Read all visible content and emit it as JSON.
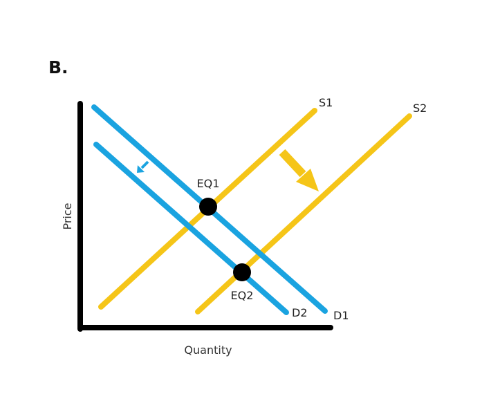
{
  "panel_label": "B.",
  "axes": {
    "x_label": "Quantity",
    "y_label": "Price"
  },
  "curves": [
    {
      "id": "S1",
      "label": "S1",
      "kind": "supply",
      "color": "#F5C518"
    },
    {
      "id": "S2",
      "label": "S2",
      "kind": "supply",
      "color": "#F5C518"
    },
    {
      "id": "D1",
      "label": "D1",
      "kind": "demand",
      "color": "#1AA3E0"
    },
    {
      "id": "D2",
      "label": "D2",
      "kind": "demand",
      "color": "#1AA3E0"
    }
  ],
  "equilibria": [
    {
      "label": "EQ1"
    },
    {
      "label": "EQ2"
    }
  ],
  "shift_arrows": [
    {
      "name": "demand-shift-arrow",
      "direction": "down-left",
      "color": "#1AA3E0"
    },
    {
      "name": "supply-shift-arrow",
      "direction": "down-right",
      "color": "#F5C518"
    }
  ],
  "colors": {
    "axis": "#000000",
    "supply": "#F5C518",
    "demand": "#1AA3E0",
    "point": "#000000"
  }
}
